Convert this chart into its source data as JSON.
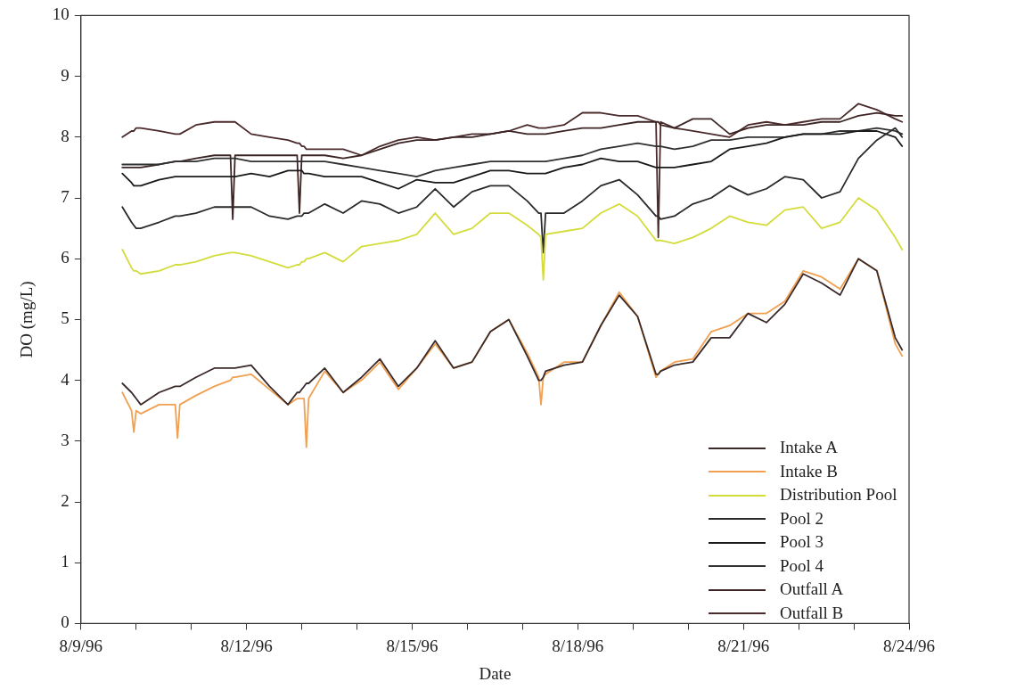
{
  "chart_data": {
    "type": "line",
    "xlabel": "Date",
    "ylabel": "DO (mg/L)",
    "legend": "bottom right",
    "marker": "none",
    "xlim": [
      "1996-08-09",
      "1996-08-24"
    ],
    "xticks": [
      {
        "value": "1996-08-09",
        "label": "8/9/96"
      },
      {
        "value": "1996-08-10",
        "label": null
      },
      {
        "value": "1996-08-11",
        "label": null
      },
      {
        "value": "1996-08-12",
        "label": "8/12/96"
      },
      {
        "value": "1996-08-13",
        "label": null
      },
      {
        "value": "1996-08-14",
        "label": null
      },
      {
        "value": "1996-08-15",
        "label": "8/15/96"
      },
      {
        "value": "1996-08-16",
        "label": null
      },
      {
        "value": "1996-08-17",
        "label": null
      },
      {
        "value": "1996-08-18",
        "label": "8/18/96"
      },
      {
        "value": "1996-08-19",
        "label": null
      },
      {
        "value": "1996-08-20",
        "label": null
      },
      {
        "value": "1996-08-21",
        "label": "8/21/96"
      },
      {
        "value": "1996-08-22",
        "label": null
      },
      {
        "value": "1996-08-23",
        "label": null
      },
      {
        "value": "1996-08-24",
        "label": "8/24/96"
      }
    ],
    "ylim": [
      0,
      10
    ],
    "yticks": [
      0,
      1,
      2,
      3,
      4,
      5,
      6,
      7,
      8,
      9,
      10
    ],
    "x": [
      "1996-08-09T18:00",
      "1996-08-09T22:00",
      "1996-08-09T23:00",
      "1996-08-10T00:00",
      "1996-08-10T02:00",
      "1996-08-10T10:00",
      "1996-08-10T17:00",
      "1996-08-10T18:00",
      "1996-08-10T19:00",
      "1996-08-11T02:00",
      "1996-08-11T10:00",
      "1996-08-11T17:00",
      "1996-08-11T18:00",
      "1996-08-11T19:00",
      "1996-08-12T02:00",
      "1996-08-12T10:00",
      "1996-08-12T18:00",
      "1996-08-12T22:00",
      "1996-08-12T23:00",
      "1996-08-13T00:00",
      "1996-08-13T01:00",
      "1996-08-13T02:00",
      "1996-08-13T03:00",
      "1996-08-13T10:00",
      "1996-08-13T18:00",
      "1996-08-14T02:00",
      "1996-08-14T10:00",
      "1996-08-14T18:00",
      "1996-08-15T02:00",
      "1996-08-15T10:00",
      "1996-08-15T18:00",
      "1996-08-16T02:00",
      "1996-08-16T10:00",
      "1996-08-16T18:00",
      "1996-08-17T02:00",
      "1996-08-17T07:00",
      "1996-08-17T08:00",
      "1996-08-17T09:00",
      "1996-08-17T10:00",
      "1996-08-17T18:00",
      "1996-08-18T02:00",
      "1996-08-18T10:00",
      "1996-08-18T18:00",
      "1996-08-19T02:00",
      "1996-08-19T10:00",
      "1996-08-19T11:00",
      "1996-08-19T12:00",
      "1996-08-19T18:00",
      "1996-08-20T02:00",
      "1996-08-20T10:00",
      "1996-08-20T18:00",
      "1996-08-21T02:00",
      "1996-08-21T10:00",
      "1996-08-21T18:00",
      "1996-08-22T02:00",
      "1996-08-22T10:00",
      "1996-08-22T18:00",
      "1996-08-23T02:00",
      "1996-08-23T10:00",
      "1996-08-23T18:00",
      "1996-08-23T21:00"
    ],
    "series": [
      {
        "name": "Intake A",
        "color": "#3a2a2a",
        "values": [
          3.95,
          3.8,
          3.75,
          3.7,
          3.6,
          3.8,
          3.9,
          3.9,
          3.9,
          4.05,
          4.2,
          4.2,
          4.2,
          4.2,
          4.25,
          3.9,
          3.6,
          3.8,
          3.8,
          3.85,
          3.9,
          3.95,
          3.95,
          4.2,
          3.8,
          4.05,
          4.35,
          3.9,
          4.2,
          4.65,
          4.2,
          4.3,
          4.8,
          5.0,
          4.4,
          4.0,
          4.0,
          4.05,
          4.15,
          4.25,
          4.3,
          4.9,
          5.4,
          5.05,
          4.1,
          4.1,
          4.15,
          4.25,
          4.3,
          4.7,
          4.7,
          5.1,
          4.95,
          5.25,
          5.75,
          5.6,
          5.4,
          6.0,
          5.8,
          4.7,
          4.5
        ]
      },
      {
        "name": "Intake B",
        "color": "#f0a050",
        "values": [
          3.8,
          3.5,
          3.15,
          3.5,
          3.45,
          3.6,
          3.6,
          3.05,
          3.6,
          3.75,
          3.9,
          4.0,
          4.05,
          4.05,
          4.1,
          3.85,
          3.6,
          3.7,
          3.7,
          3.7,
          3.7,
          2.9,
          3.7,
          4.15,
          3.8,
          4.0,
          4.3,
          3.85,
          4.2,
          4.6,
          4.2,
          4.3,
          4.8,
          5.0,
          4.45,
          4.05,
          3.6,
          4.05,
          4.1,
          4.3,
          4.3,
          4.9,
          5.45,
          5.05,
          4.05,
          4.1,
          4.15,
          4.3,
          4.35,
          4.8,
          4.9,
          5.1,
          5.1,
          5.3,
          5.8,
          5.7,
          5.5,
          6.0,
          5.8,
          4.6,
          4.4
        ]
      },
      {
        "name": "Distribution Pool",
        "color": "#d4dc3c",
        "values": [
          6.15,
          5.85,
          5.8,
          5.8,
          5.75,
          5.8,
          5.9,
          5.9,
          5.9,
          5.95,
          6.05,
          6.1,
          6.1,
          6.1,
          6.05,
          5.95,
          5.85,
          5.9,
          5.9,
          5.95,
          5.95,
          6.0,
          6.0,
          6.1,
          5.95,
          6.2,
          6.25,
          6.3,
          6.4,
          6.75,
          6.4,
          6.5,
          6.75,
          6.75,
          6.55,
          6.4,
          6.35,
          5.65,
          6.4,
          6.45,
          6.5,
          6.75,
          6.9,
          6.7,
          6.3,
          6.3,
          6.3,
          6.25,
          6.35,
          6.5,
          6.7,
          6.6,
          6.55,
          6.8,
          6.85,
          6.5,
          6.6,
          7.0,
          6.8,
          6.35,
          6.15
        ]
      },
      {
        "name": "Pool 2",
        "color": "#2a2a2a",
        "values": [
          6.85,
          6.6,
          6.55,
          6.5,
          6.5,
          6.6,
          6.7,
          6.7,
          6.7,
          6.75,
          6.85,
          6.85,
          6.85,
          6.85,
          6.85,
          6.7,
          6.65,
          6.7,
          6.7,
          6.7,
          6.75,
          6.75,
          6.75,
          6.9,
          6.75,
          6.95,
          6.9,
          6.75,
          6.85,
          7.15,
          6.85,
          7.1,
          7.2,
          7.2,
          6.95,
          6.75,
          6.75,
          6.1,
          6.75,
          6.75,
          6.95,
          7.2,
          7.3,
          7.05,
          6.7,
          6.7,
          6.65,
          6.7,
          6.9,
          7.0,
          7.2,
          7.05,
          7.15,
          7.35,
          7.3,
          7.0,
          7.1,
          7.65,
          7.95,
          8.15,
          8.0
        ]
      },
      {
        "name": "Pool 3",
        "color": "#1a1a1a",
        "values": [
          7.4,
          7.25,
          7.2,
          7.2,
          7.2,
          7.3,
          7.35,
          7.35,
          7.35,
          7.35,
          7.35,
          7.35,
          7.35,
          7.35,
          7.4,
          7.35,
          7.45,
          7.45,
          7.45,
          7.45,
          7.4,
          7.4,
          7.4,
          7.35,
          7.35,
          7.35,
          7.25,
          7.15,
          7.3,
          7.25,
          7.25,
          7.35,
          7.45,
          7.45,
          7.4,
          7.4,
          7.4,
          7.4,
          7.4,
          7.5,
          7.55,
          7.65,
          7.6,
          7.6,
          7.5,
          7.5,
          7.5,
          7.5,
          7.55,
          7.6,
          7.8,
          7.85,
          7.9,
          8.0,
          8.05,
          8.05,
          8.05,
          8.1,
          8.1,
          8.0,
          7.85
        ]
      },
      {
        "name": "Pool 4",
        "color": "#303030",
        "values": [
          7.55,
          7.55,
          7.55,
          7.55,
          7.55,
          7.55,
          7.6,
          7.6,
          7.6,
          7.6,
          7.65,
          7.65,
          7.65,
          7.65,
          7.6,
          7.6,
          7.6,
          7.6,
          7.6,
          7.6,
          7.6,
          7.6,
          7.6,
          7.6,
          7.55,
          7.5,
          7.45,
          7.4,
          7.35,
          7.45,
          7.5,
          7.55,
          7.6,
          7.6,
          7.6,
          7.6,
          7.6,
          7.6,
          7.6,
          7.65,
          7.7,
          7.8,
          7.85,
          7.9,
          7.85,
          7.85,
          7.85,
          7.8,
          7.85,
          7.95,
          7.95,
          8.0,
          8.0,
          8.0,
          8.05,
          8.05,
          8.1,
          8.1,
          8.15,
          8.1,
          8.05
        ]
      },
      {
        "name": "Outfall A",
        "color": "#3c2424",
        "values": [
          7.5,
          7.5,
          7.5,
          7.5,
          7.5,
          7.55,
          7.6,
          7.6,
          7.6,
          7.65,
          7.7,
          7.7,
          6.65,
          7.7,
          7.7,
          7.7,
          7.7,
          7.7,
          6.75,
          7.7,
          7.7,
          7.7,
          7.7,
          7.7,
          7.65,
          7.7,
          7.8,
          7.9,
          7.95,
          7.95,
          8.0,
          8.0,
          8.05,
          8.1,
          8.05,
          8.05,
          8.05,
          8.05,
          8.05,
          8.1,
          8.15,
          8.15,
          8.2,
          8.25,
          8.25,
          8.25,
          8.2,
          8.15,
          8.3,
          8.3,
          8.05,
          8.15,
          8.2,
          8.2,
          8.2,
          8.25,
          8.25,
          8.35,
          8.4,
          8.35,
          8.35
        ]
      },
      {
        "name": "Outfall B",
        "color": "#4a2a2a",
        "values": [
          8.0,
          8.1,
          8.1,
          8.15,
          8.15,
          8.1,
          8.05,
          8.05,
          8.05,
          8.2,
          8.25,
          8.25,
          8.25,
          8.25,
          8.05,
          8.0,
          7.95,
          7.9,
          7.9,
          7.85,
          7.85,
          7.8,
          7.8,
          7.8,
          7.8,
          7.7,
          7.85,
          7.95,
          8.0,
          7.95,
          8.0,
          8.05,
          8.05,
          8.1,
          8.2,
          8.15,
          8.15,
          8.15,
          8.15,
          8.2,
          8.4,
          8.4,
          8.35,
          8.35,
          8.25,
          6.35,
          8.25,
          8.15,
          8.1,
          8.05,
          8.0,
          8.2,
          8.25,
          8.2,
          8.25,
          8.3,
          8.3,
          8.55,
          8.45,
          8.3,
          8.25
        ]
      }
    ]
  }
}
